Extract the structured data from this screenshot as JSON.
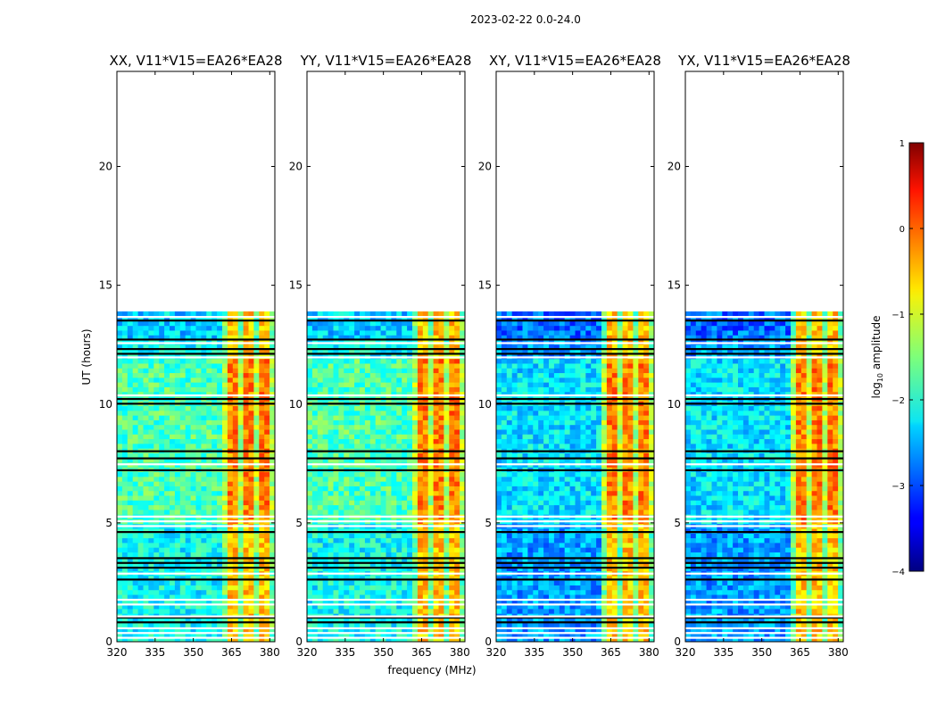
{
  "figure": {
    "suptitle": "2023-02-22 0.0-24.0"
  },
  "chart_data": [
    {
      "type": "heatmap",
      "title": "XX, V11*V15=EA26*EA28"
    },
    {
      "type": "heatmap",
      "title": "YY, V11*V15=EA26*EA28"
    },
    {
      "type": "heatmap",
      "title": "XY, V11*V15=EA26*EA28"
    },
    {
      "type": "heatmap",
      "title": "YX, V11*V15=EA26*EA28"
    }
  ],
  "shared": {
    "xlabel": "frequency (MHz)",
    "ylabel": "UT (hours)",
    "xlim": [
      320,
      382
    ],
    "ylim": [
      0,
      24
    ],
    "xticks": [
      320,
      335,
      350,
      365,
      380
    ],
    "yticks": [
      0,
      5,
      10,
      15,
      20
    ],
    "data_extent_hours": [
      0,
      13.9
    ],
    "strong_band_mhz": [
      360.5,
      382
    ],
    "gap_rows_hours": [
      0.15,
      0.35,
      0.55,
      0.8,
      1.0,
      1.05,
      1.55,
      1.75,
      2.6,
      2.85,
      3.1,
      3.3,
      3.5,
      4.6,
      4.85,
      5.05,
      5.25,
      7.2,
      7.45,
      7.7,
      8.0,
      10.0,
      10.2,
      10.35,
      11.95,
      12.1,
      12.3,
      12.55,
      12.7,
      13.5,
      13.65
    ]
  },
  "colorbar": {
    "label": "log10 amplitude",
    "label_base": "log",
    "label_sub": "10",
    "label_rest": " amplitude",
    "ticks": [
      "1",
      "0",
      "−1",
      "−2",
      "−3",
      "−4"
    ],
    "range": [
      -4,
      1
    ],
    "cmap": "jet"
  }
}
